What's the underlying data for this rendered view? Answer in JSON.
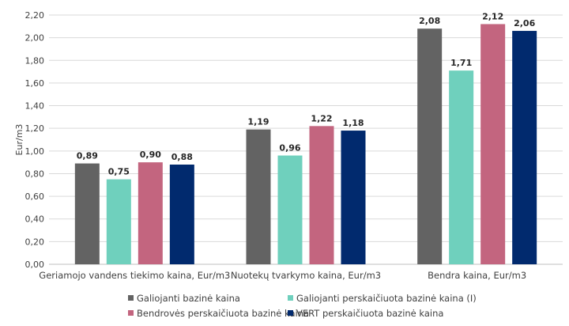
{
  "chart_data": {
    "type": "bar",
    "categories": [
      "Geriamojo vandens tiekimo kaina, Eur/m3",
      "Nuotekų tvarkymo kaina, Eur/m3",
      "Bendra kaina, Eur/m3"
    ],
    "series": [
      {
        "name": "Galiojanti bazinė kaina",
        "color": "#636363",
        "values": [
          0.89,
          1.19,
          2.08
        ],
        "labels": [
          "0,89",
          "1,19",
          "2,08"
        ]
      },
      {
        "name": "Galiojanti perskaičiuota bazinė kaina (I)",
        "color": "#6fd0bd",
        "values": [
          0.75,
          0.96,
          1.71
        ],
        "labels": [
          "0,75",
          "0,96",
          "1,71"
        ]
      },
      {
        "name": "Bendrovės perskaičiuota bazinė kaina",
        "color": "#c3657f",
        "values": [
          0.9,
          1.22,
          2.12
        ],
        "labels": [
          "0,90",
          "1,22",
          "2,12"
        ]
      },
      {
        "name": "VERT perskaičiuota bazinė kaina",
        "color": "#012a6e",
        "values": [
          0.88,
          1.18,
          2.06
        ],
        "labels": [
          "0,88",
          "1,18",
          "2,06"
        ]
      }
    ],
    "ylabel": "Eur/m3",
    "xlabel": "",
    "ylim": [
      0,
      2.2
    ],
    "yticks": [
      "0,00",
      "0,20",
      "0,40",
      "0,60",
      "0,80",
      "1,00",
      "1,20",
      "1,40",
      "1,60",
      "1,80",
      "2,00",
      "2,20"
    ],
    "grid": true,
    "legend_position": "bottom"
  }
}
